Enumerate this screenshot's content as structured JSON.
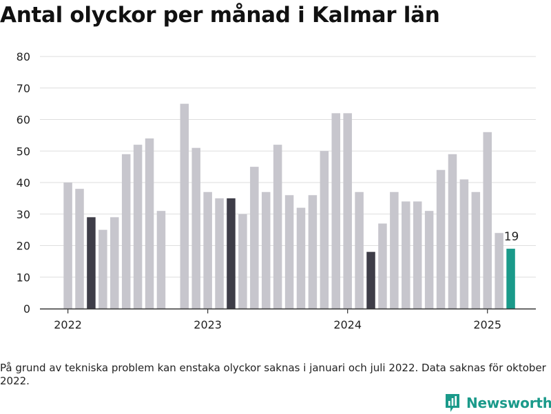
{
  "header": {
    "title": "Antal olyckor per månad i Kalmar län"
  },
  "chart_data": {
    "type": "bar",
    "title": "Antal olyckor per månad i Kalmar län",
    "xlabel": "",
    "ylabel": "",
    "ylim": [
      0,
      80
    ],
    "yticks": [
      0,
      10,
      20,
      30,
      40,
      50,
      60,
      70,
      80
    ],
    "grid": true,
    "legend": "none",
    "x_tick_labels": [
      "2022",
      "2023",
      "2024",
      "2025"
    ],
    "categories": [
      "2022-01",
      "2022-02",
      "2022-03",
      "2022-04",
      "2022-05",
      "2022-06",
      "2022-07",
      "2022-08",
      "2022-09",
      "2022-10",
      "2022-11",
      "2022-12",
      "2023-01",
      "2023-02",
      "2023-03",
      "2023-04",
      "2023-05",
      "2023-06",
      "2023-07",
      "2023-08",
      "2023-09",
      "2023-10",
      "2023-11",
      "2023-12",
      "2024-01",
      "2024-02",
      "2024-03",
      "2024-04",
      "2024-05",
      "2024-06",
      "2024-07",
      "2024-08",
      "2024-09",
      "2024-10",
      "2024-11",
      "2024-12",
      "2025-01",
      "2025-02",
      "2025-03"
    ],
    "values": [
      40,
      38,
      29,
      25,
      29,
      49,
      52,
      54,
      31,
      null,
      65,
      51,
      37,
      35,
      35,
      30,
      45,
      37,
      52,
      36,
      32,
      36,
      50,
      62,
      62,
      37,
      18,
      27,
      37,
      34,
      34,
      31,
      44,
      49,
      41,
      37,
      56,
      24,
      19
    ],
    "highlight_indices": [
      2,
      14,
      26
    ],
    "latest_index": 38,
    "latest_label": "19",
    "colors": {
      "default": "#c7c6cd",
      "highlight": "#3e3d48",
      "latest": "#1a9a8a",
      "grid": "#dedede",
      "axis": "#333333"
    }
  },
  "footnote": "På grund av tekniska problem kan enstaka olyckor saknas i januari och juli 2022. Data saknas för oktober 2022.",
  "brand": {
    "name": "Newsworthy",
    "icon": "newsworthy-logo-icon"
  }
}
